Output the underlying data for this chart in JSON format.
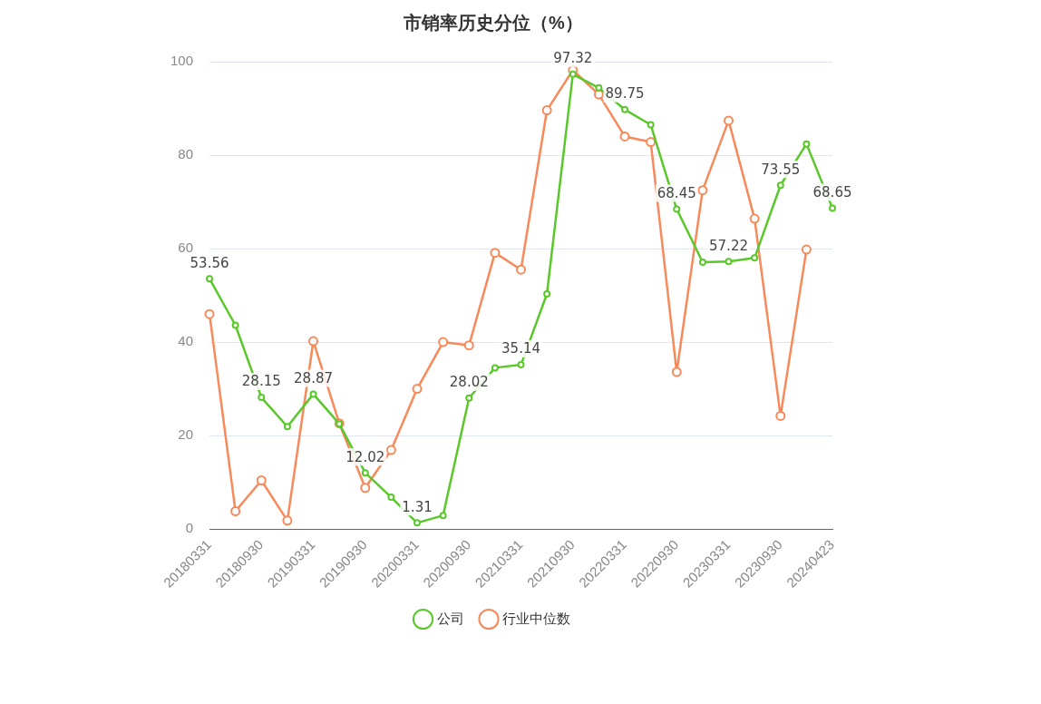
{
  "chart_data": {
    "type": "line",
    "title": "市销率历史分位（%）",
    "categories": [
      "20180331",
      null,
      "20180930",
      null,
      "20190331",
      null,
      "20190930",
      null,
      "20200331",
      null,
      "20200930",
      null,
      "20210331",
      null,
      "20210930",
      null,
      "20220331",
      null,
      "20220930",
      null,
      "20230331",
      null,
      "20230930",
      null,
      "20240423"
    ],
    "series": [
      {
        "name": "公司",
        "color": "#5ac82a",
        "values": [
          53.56,
          43.6,
          28.15,
          21.9,
          28.87,
          22.5,
          12.02,
          6.8,
          1.31,
          2.9,
          28.02,
          34.5,
          35.14,
          50.3,
          97.32,
          94.4,
          89.75,
          86.5,
          68.45,
          57.1,
          57.22,
          58,
          73.55,
          82.4,
          68.65
        ],
        "value_labels": [
          "53.56",
          null,
          "28.15",
          null,
          "28.87",
          null,
          "12.02",
          null,
          "1.31",
          null,
          "28.02",
          null,
          "35.14",
          null,
          "97.32",
          null,
          "89.75",
          null,
          "68.45",
          null,
          "57.22",
          null,
          "73.55",
          null,
          "68.65"
        ]
      },
      {
        "name": "行业中位数",
        "color": "#f7895a",
        "values": [
          46,
          3.8,
          10.4,
          1.8,
          40.2,
          22.6,
          8.8,
          16.9,
          30,
          40,
          39.3,
          59.1,
          55.5,
          89.6,
          98.2,
          93,
          84,
          82.8,
          33.6,
          72.5,
          87.4,
          66.4,
          24.2,
          59.8,
          null
        ]
      }
    ],
    "ylim": [
      0,
      100
    ],
    "yticks": [
      0,
      20,
      40,
      60,
      80,
      100
    ],
    "grid": "y",
    "legend": "bottom",
    "marker": "circle",
    "line_style": "solid"
  }
}
